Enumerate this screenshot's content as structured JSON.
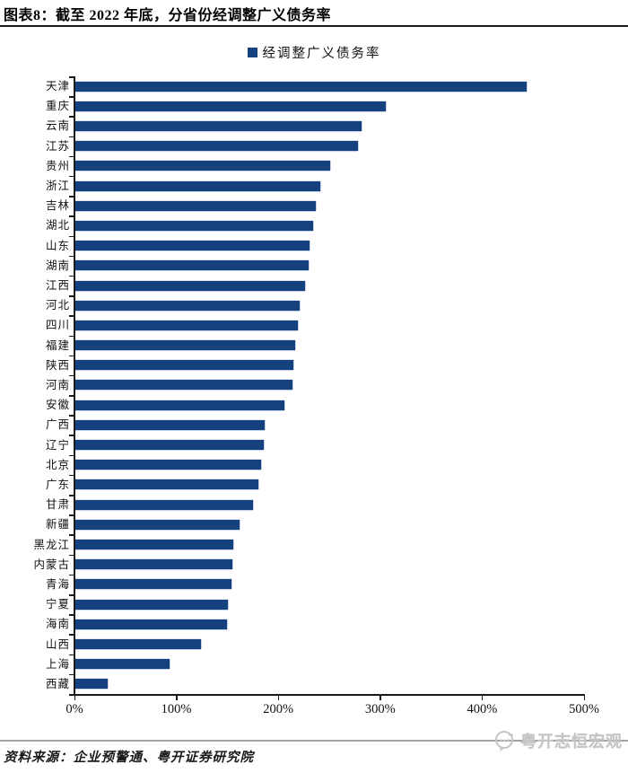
{
  "title": "图表8：截至 2022 年底，分省份经调整广义债务率",
  "legend": {
    "label": "经调整广义债务率",
    "swatch_color": "#15417E"
  },
  "chart_data": {
    "type": "bar",
    "orientation": "horizontal",
    "title": "经调整广义债务率",
    "xlabel": "",
    "ylabel": "",
    "xlim": [
      0,
      500
    ],
    "x_unit": "%",
    "x_tick_labels": [
      "0%",
      "100%",
      "200%",
      "300%",
      "400%",
      "500%"
    ],
    "x_tick_values": [
      0,
      100,
      200,
      300,
      400,
      500
    ],
    "grid": false,
    "legend_position": "top",
    "bar_color": "#15417E",
    "categories": [
      "天津",
      "重庆",
      "云南",
      "江苏",
      "贵州",
      "浙江",
      "吉林",
      "湖北",
      "山东",
      "湖南",
      "江西",
      "河北",
      "四川",
      "福建",
      "陕西",
      "河南",
      "安徽",
      "广西",
      "辽宁",
      "北京",
      "广东",
      "甘肃",
      "新疆",
      "黑龙江",
      "内蒙古",
      "青海",
      "宁夏",
      "海南",
      "山西",
      "上海",
      "西藏"
    ],
    "series": [
      {
        "name": "经调整广义债务率",
        "values": [
          443,
          305,
          281,
          277,
          250,
          240,
          236,
          233,
          230,
          229,
          225,
          220,
          218,
          216,
          214,
          213,
          205,
          186,
          185,
          182,
          180,
          174,
          161,
          155,
          154,
          153,
          150,
          149,
          123,
          92,
          32
        ]
      }
    ]
  },
  "footer": {
    "source": "资料来源：企业预警通、粤开证券研究院",
    "watermark": "粤开志恒宏观"
  }
}
